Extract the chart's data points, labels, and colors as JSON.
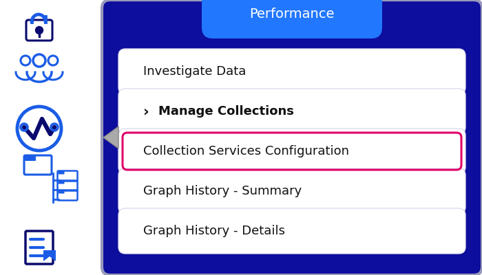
{
  "bg_color": "#ffffff",
  "panel_bg": "#0d0d9e",
  "panel_border": "#9999bb",
  "pill_bg": "#ffffff",
  "pill_border": "#ccccdd",
  "header_bg": "#2277ff",
  "header_text": "Performance",
  "header_text_color": "#ffffff",
  "menu_items": [
    {
      "text": "Investigate Data",
      "bold": false,
      "prefix": "",
      "highlight": false
    },
    {
      "text": "Manage Collections",
      "bold": true,
      "prefix": "›",
      "highlight": false
    },
    {
      "text": "Collection Services Configuration",
      "bold": false,
      "prefix": "",
      "highlight": true
    },
    {
      "text": "Graph History - Summary",
      "bold": false,
      "prefix": "",
      "highlight": false
    },
    {
      "text": "Graph History - Details",
      "bold": false,
      "prefix": "",
      "highlight": false
    }
  ],
  "highlight_border": "#e0006a",
  "arrow_color": "#aaaaaa",
  "sidebar_icon_color": "#1a5ce6",
  "sidebar_icon_dark": "#0a0a6e",
  "figsize": [
    7.0,
    4.0
  ],
  "dpi": 100
}
